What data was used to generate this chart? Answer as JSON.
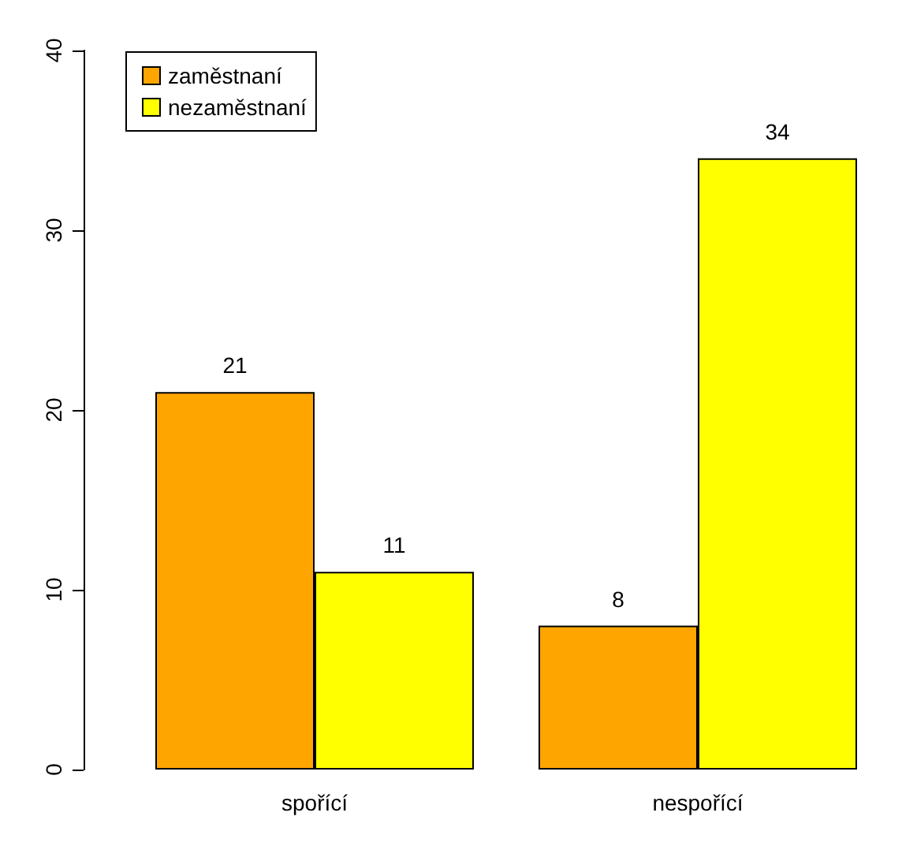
{
  "chart_data": {
    "type": "bar",
    "categories": [
      "spořící",
      "nespořící"
    ],
    "series": [
      {
        "name": "zaměstnaní",
        "color": "#ffa500",
        "values": [
          21,
          8
        ]
      },
      {
        "name": "nezaměstnaní",
        "color": "#ffff00",
        "values": [
          11,
          34
        ]
      }
    ],
    "ylim": [
      0,
      40
    ],
    "yticks": [
      0,
      10,
      20,
      30,
      40
    ],
    "grid": false,
    "legend": "top left",
    "data_labels": true
  }
}
